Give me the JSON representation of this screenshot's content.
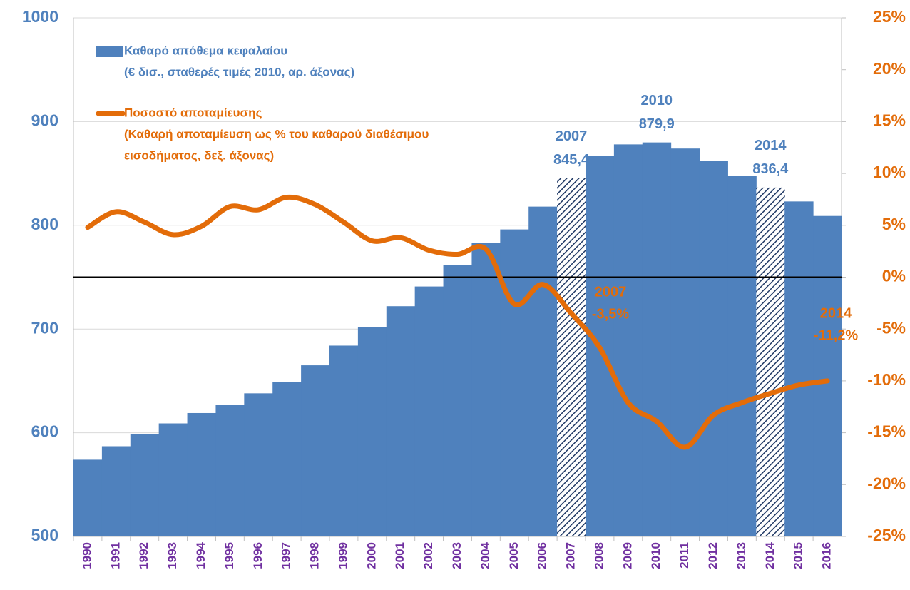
{
  "chart_data": {
    "type": "bar-line",
    "categories": [
      "1990",
      "1991",
      "1992",
      "1993",
      "1994",
      "1995",
      "1996",
      "1997",
      "1998",
      "1999",
      "2000",
      "2001",
      "2002",
      "2003",
      "2004",
      "2005",
      "2006",
      "2007",
      "2008",
      "2009",
      "2010",
      "2011",
      "2012",
      "2013",
      "2014",
      "2015",
      "2016"
    ],
    "ylim": [
      500,
      1000
    ],
    "yticks": [
      500,
      600,
      700,
      800,
      900,
      1000
    ],
    "y2lim": [
      -25,
      25
    ],
    "y2ticks": [
      {
        "value": -25,
        "label": "-25%"
      },
      {
        "value": -20,
        "label": "-20%"
      },
      {
        "value": -15,
        "label": "-15%"
      },
      {
        "value": -10,
        "label": "-10%"
      },
      {
        "value": -5,
        "label": "-5%"
      },
      {
        "value": 0,
        "label": "0%"
      },
      {
        "value": 5,
        "label": "5%"
      },
      {
        "value": 10,
        "label": "10%"
      },
      {
        "value": 15,
        "label": "15%"
      },
      {
        "value": 20,
        "label": "20%"
      },
      {
        "value": 25,
        "label": "25%"
      }
    ],
    "grid": true,
    "zero_line_y2": true,
    "hatched_categories": [
      "2007",
      "2014"
    ],
    "series": [
      {
        "name": "Καθαρό απόθεμα κεφαλαίου",
        "note": [
          "(€ δισ., σταθερές τιμές 2010, αρ. άξονας)"
        ],
        "kind": "bar",
        "color": "#4f81bd",
        "values": [
          574,
          587,
          599,
          609,
          619,
          627,
          638,
          649,
          665,
          684,
          702,
          722,
          741,
          762,
          783,
          796,
          818,
          845.4,
          867,
          878,
          879.9,
          874,
          862,
          848,
          836.4,
          823,
          809
        ],
        "top_labels": [
          null,
          null,
          null,
          null,
          null,
          null,
          null,
          null,
          null,
          null,
          null,
          null,
          null,
          null,
          null,
          null,
          null,
          "2007",
          null,
          null,
          "2010",
          null,
          null,
          null,
          "2014",
          null,
          null
        ],
        "value_labels": [
          null,
          null,
          null,
          null,
          null,
          null,
          null,
          null,
          null,
          null,
          null,
          null,
          null,
          null,
          null,
          null,
          null,
          "845,4",
          null,
          null,
          "879,9",
          null,
          null,
          null,
          "836,4",
          null,
          null
        ]
      },
      {
        "name": "Ποσοστό αποταμίευσης",
        "note": [
          "(Καθαρή αποταμίευση ως % του καθαρού διαθέσιμου",
          "εισοδήματος, δεξ. άξονας)"
        ],
        "kind": "line",
        "axis": "y2",
        "color": "#e36c09",
        "values": [
          4.8,
          6.3,
          5.3,
          4.1,
          4.9,
          6.8,
          6.5,
          7.7,
          7.0,
          5.3,
          3.5,
          3.8,
          2.6,
          2.2,
          2.7,
          -2.6,
          -0.7,
          -3.5,
          -6.8,
          -12.1,
          -13.9,
          -16.4,
          -13.3,
          -12.1,
          -11.2,
          -10.4,
          -10.0
        ],
        "top_labels": [
          null,
          null,
          null,
          null,
          null,
          null,
          null,
          null,
          null,
          null,
          null,
          null,
          null,
          null,
          null,
          null,
          null,
          "2007",
          null,
          null,
          null,
          null,
          null,
          null,
          "2014",
          null,
          null
        ],
        "value_labels": [
          null,
          null,
          null,
          null,
          null,
          null,
          null,
          null,
          null,
          null,
          null,
          null,
          null,
          null,
          null,
          null,
          null,
          "-3,5%",
          null,
          null,
          null,
          null,
          null,
          null,
          "-11,2%",
          null,
          null
        ]
      }
    ]
  }
}
